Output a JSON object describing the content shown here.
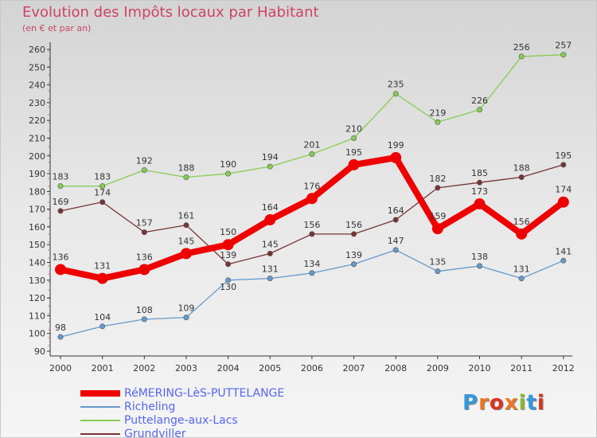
{
  "header": {
    "title": "Evolution des Impôts locaux par Habitant",
    "subtitle": "(en € et par an)"
  },
  "chart_data": {
    "type": "line",
    "title": "Evolution des Impôts locaux par Habitant",
    "subtitle": "(en € et par an)",
    "xlabel": "",
    "ylabel": "",
    "ylim": [
      90,
      260
    ],
    "ytick_step": 10,
    "grid": false,
    "legend_position": "bottom-left",
    "x": [
      "2000",
      "2001",
      "2002",
      "2003",
      "2004",
      "2005",
      "2006",
      "2007",
      "2008",
      "2009",
      "2010",
      "2011",
      "2012"
    ],
    "series": [
      {
        "name": "RéMERING-LèS-PUTTELANGE",
        "color": "#ee0000",
        "values": [
          136,
          131,
          136,
          145,
          150,
          164,
          176,
          195,
          199,
          159,
          173,
          156,
          174
        ]
      },
      {
        "name": "Richeling",
        "color": "#6699cc",
        "values": [
          98,
          104,
          108,
          109,
          130,
          131,
          134,
          139,
          147,
          135,
          138,
          131,
          141
        ]
      },
      {
        "name": "Puttelange-aux-Lacs",
        "color": "#88cc55",
        "values": [
          183,
          183,
          192,
          188,
          190,
          194,
          201,
          210,
          235,
          219,
          226,
          256,
          257
        ]
      },
      {
        "name": "Grundviller",
        "color": "#773333",
        "values": [
          169,
          174,
          157,
          161,
          139,
          145,
          156,
          156,
          164,
          182,
          185,
          188,
          195
        ]
      }
    ]
  },
  "logo": {
    "letters": [
      "P",
      "r",
      "o",
      "x",
      "i",
      "t",
      "i"
    ],
    "colors": [
      "#3399dd",
      "#ee7722",
      "#dd3322",
      "#ee7722",
      "#88bb33",
      "#3399dd",
      "#dd3322"
    ]
  }
}
